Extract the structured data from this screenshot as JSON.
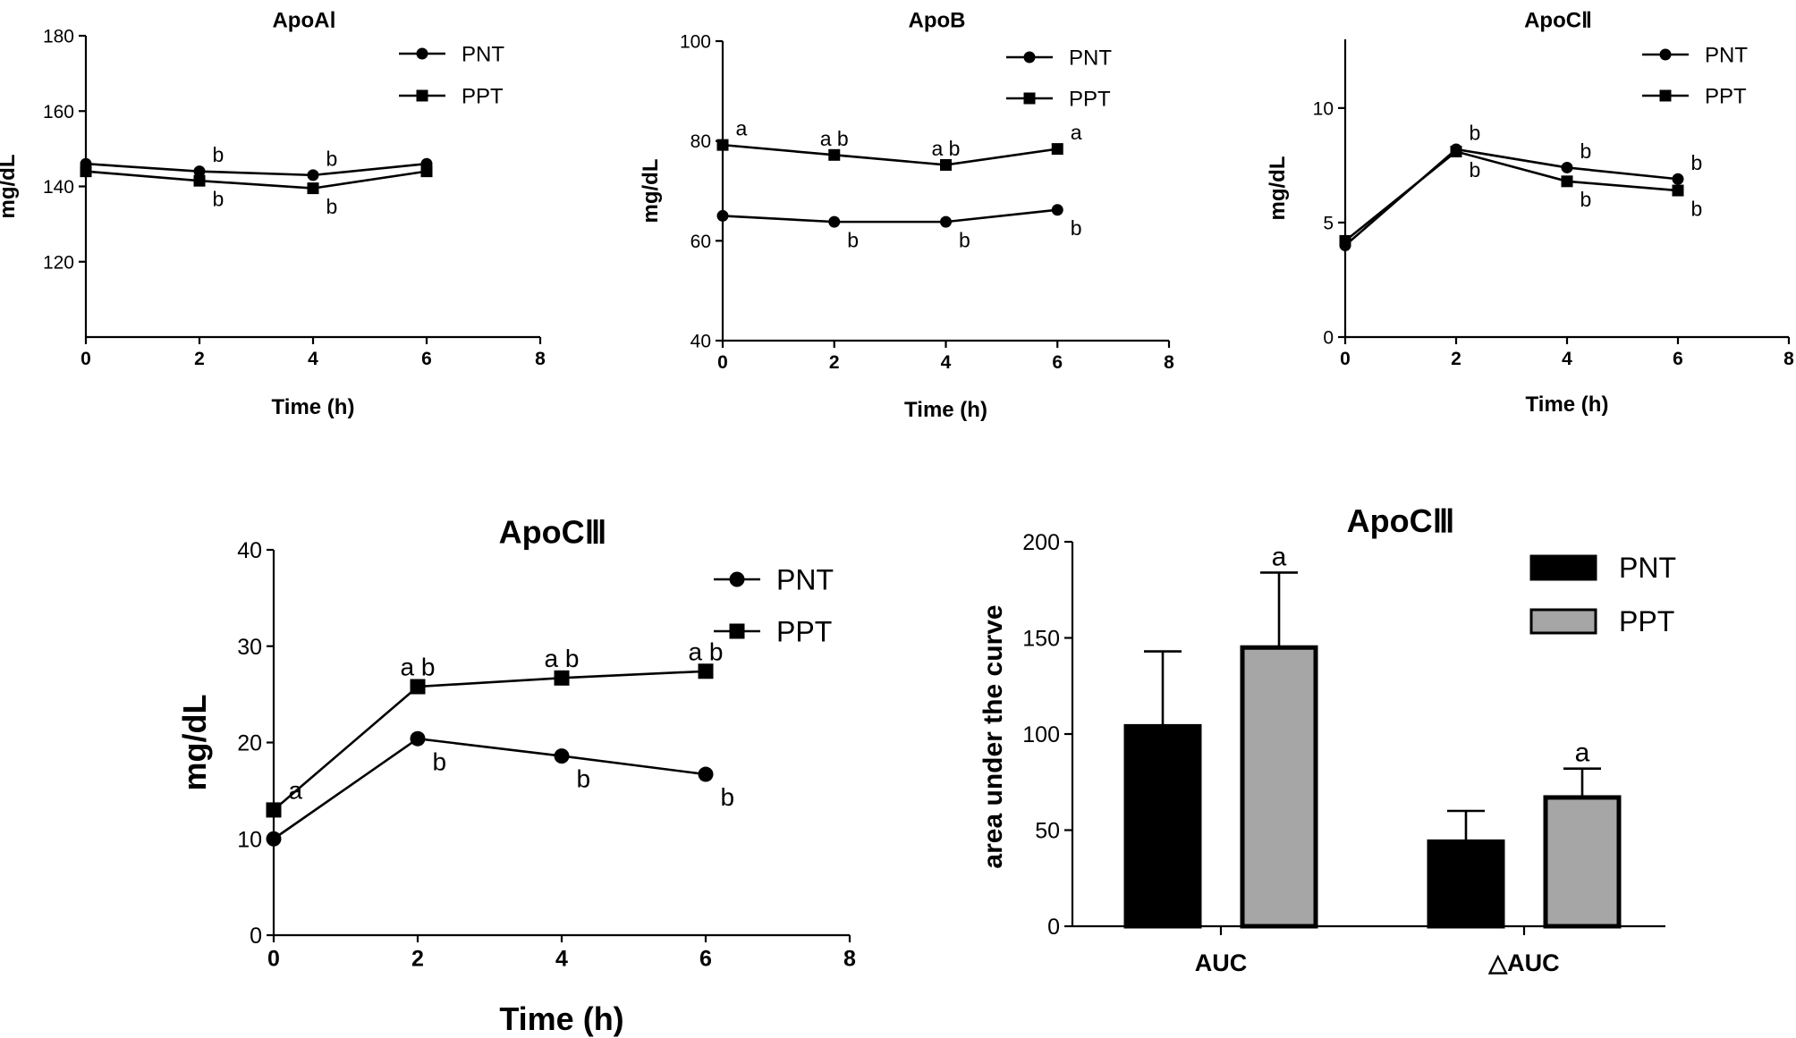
{
  "colors": {
    "pnt": "#000000",
    "ppt": "#a6a6a6",
    "axis": "#000000",
    "background": "#ffffff"
  },
  "legend_names": [
    "PNT",
    "PPT"
  ],
  "chart_data": [
    {
      "id": "apoa1",
      "type": "line",
      "title": "ApoAⅠ",
      "xlabel": "Time (h)",
      "ylabel": "mg/dL",
      "xlim": [
        0,
        8
      ],
      "ylim": [
        100,
        180
      ],
      "xticks": [
        0,
        2,
        4,
        6,
        8
      ],
      "yticks": [
        120,
        140,
        160,
        180
      ],
      "x": [
        0,
        2,
        4,
        6
      ],
      "series": [
        {
          "name": "PNT",
          "marker": "circle",
          "values": [
            146,
            144,
            143,
            146
          ],
          "labels": [
            "",
            "b",
            "b",
            ""
          ]
        },
        {
          "name": "PPT",
          "marker": "square",
          "values": [
            144,
            141.5,
            139.5,
            144
          ],
          "labels": [
            "",
            "b",
            "b",
            ""
          ]
        }
      ]
    },
    {
      "id": "apob",
      "type": "line",
      "title": "ApoB",
      "xlabel": "Time (h)",
      "ylabel": "mg/dL",
      "xlim": [
        0,
        8
      ],
      "ylim": [
        40,
        100
      ],
      "xticks": [
        0,
        2,
        4,
        6,
        8
      ],
      "yticks": [
        40,
        60,
        80,
        100
      ],
      "x": [
        0,
        2,
        4,
        6
      ],
      "series": [
        {
          "name": "PNT",
          "marker": "circle",
          "values": [
            65,
            63.8,
            63.8,
            66.2
          ],
          "labels": [
            "",
            "b",
            "b",
            "b"
          ]
        },
        {
          "name": "PPT",
          "marker": "square",
          "values": [
            79.2,
            77.2,
            75.2,
            78.4
          ],
          "labels": [
            "a",
            "a b",
            "a b",
            "a"
          ]
        }
      ]
    },
    {
      "id": "apoc2",
      "type": "line",
      "title": "ApoCⅡ",
      "xlabel": "Time (h)",
      "ylabel": "mg/dL",
      "xlim": [
        0,
        8
      ],
      "ylim": [
        0,
        13
      ],
      "xticks": [
        0,
        2,
        4,
        6,
        8
      ],
      "yticks": [
        0,
        5,
        10
      ],
      "x": [
        0,
        2,
        4,
        6
      ],
      "series": [
        {
          "name": "PNT",
          "marker": "circle",
          "values": [
            4,
            8.2,
            7.4,
            6.9
          ],
          "labels": [
            "",
            "b",
            "b",
            "b"
          ]
        },
        {
          "name": "PPT",
          "marker": "square",
          "values": [
            4.2,
            8.1,
            6.8,
            6.4
          ],
          "labels": [
            "",
            "b",
            "b",
            "b"
          ]
        }
      ]
    },
    {
      "id": "apoc3",
      "type": "line",
      "title": "ApoCⅢ",
      "xlabel": "Time (h)",
      "ylabel": "mg/dL",
      "xlim": [
        0,
        8
      ],
      "ylim": [
        0,
        40
      ],
      "xticks": [
        0,
        2,
        4,
        6,
        8
      ],
      "yticks": [
        0,
        10,
        20,
        30,
        40
      ],
      "x": [
        0,
        2,
        4,
        6
      ],
      "series": [
        {
          "name": "PNT",
          "marker": "circle",
          "values": [
            10,
            20.4,
            18.6,
            16.7
          ],
          "labels": [
            "",
            "b",
            "b",
            "b"
          ]
        },
        {
          "name": "PPT",
          "marker": "square",
          "values": [
            13,
            25.8,
            26.7,
            27.4
          ],
          "labels": [
            "a",
            "a b",
            "a b",
            "a b"
          ]
        }
      ]
    },
    {
      "id": "apoc3-auc",
      "type": "bar",
      "title": "ApoCⅢ",
      "xlabel": "",
      "ylabel": "area under the curve",
      "ylim": [
        0,
        200
      ],
      "yticks": [
        0,
        50,
        100,
        150,
        200
      ],
      "categories": [
        "AUC",
        "△AUC"
      ],
      "series": [
        {
          "name": "PNT",
          "values": [
            104,
            44
          ],
          "errors": [
            39,
            16
          ],
          "labels": [
            "",
            ""
          ]
        },
        {
          "name": "PPT",
          "values": [
            145,
            67
          ],
          "errors": [
            39,
            15
          ],
          "labels": [
            "a",
            "a"
          ]
        }
      ]
    }
  ]
}
